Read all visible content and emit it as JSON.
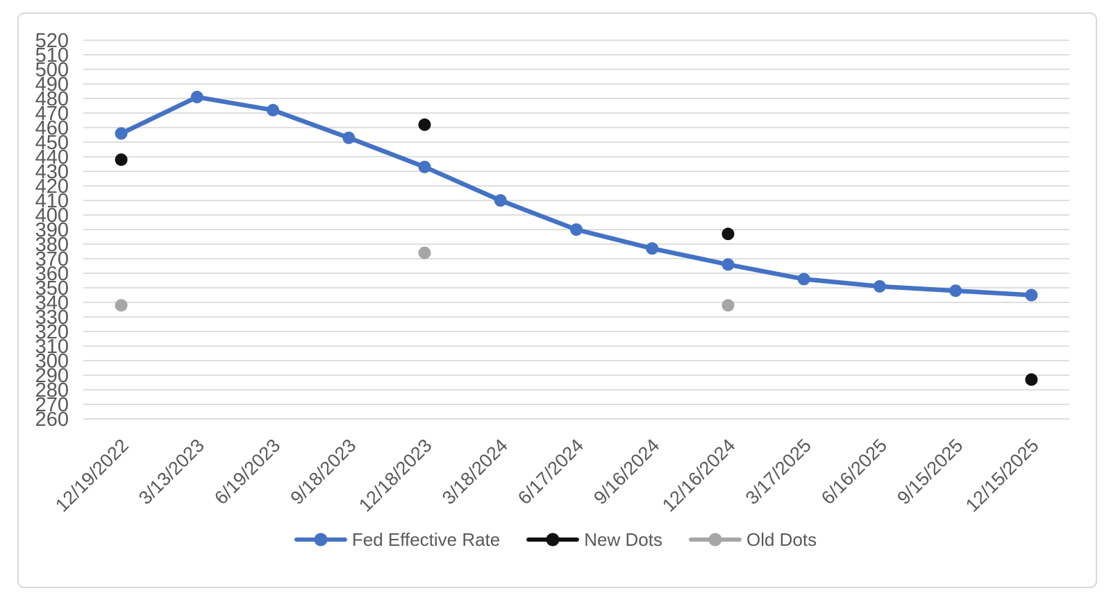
{
  "chart_data": {
    "type": "line",
    "title": "",
    "xlabel": "",
    "ylabel": "",
    "categories": [
      "12/19/2022",
      "3/13/2023",
      "6/19/2023",
      "9/18/2023",
      "12/18/2023",
      "3/18/2024",
      "6/17/2024",
      "9/16/2024",
      "12/16/2024",
      "3/17/2025",
      "6/16/2025",
      "9/15/2025",
      "12/15/2025"
    ],
    "series": [
      {
        "id": "fed-effective-rate",
        "name": "Fed Effective Rate",
        "type": "line",
        "color": "#4472C4",
        "values": [
          456,
          481,
          472,
          453,
          433,
          410,
          390,
          377,
          366,
          356,
          351,
          348,
          345
        ]
      },
      {
        "id": "new-dots",
        "name": "New Dots",
        "type": "scatter",
        "color": "#111111",
        "values": [
          438,
          null,
          null,
          null,
          462,
          null,
          null,
          null,
          387,
          null,
          null,
          null,
          287
        ]
      },
      {
        "id": "old-dots",
        "name": "Old Dots",
        "type": "scatter",
        "color": "#A6A6A6",
        "values": [
          338,
          null,
          null,
          null,
          374,
          null,
          null,
          null,
          338,
          null,
          null,
          null,
          null
        ]
      }
    ],
    "ylim": [
      260,
      520
    ],
    "ytick_step": 10,
    "yticks": [
      520,
      510,
      500,
      490,
      480,
      470,
      460,
      450,
      440,
      430,
      420,
      410,
      400,
      390,
      380,
      370,
      360,
      350,
      340,
      330,
      320,
      310,
      300,
      290,
      280,
      270,
      260
    ],
    "grid": "horizontal",
    "legend_position": "bottom",
    "axis_label_color": "#595959",
    "gridline_color": "#D9D9D9",
    "frame_border_color": "#D9D9D9"
  }
}
